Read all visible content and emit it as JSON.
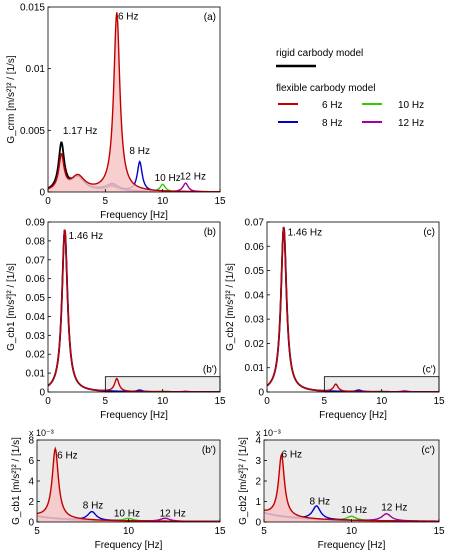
{
  "colors": {
    "rigid": "#000000",
    "f6": "#c00000",
    "f8": "#0000c8",
    "f10": "#33cc00",
    "f12": "#a000a0",
    "inset_bg": "#ececec",
    "fill_6hz": "#f7c6c6"
  },
  "legend": {
    "rigid_label": "rigid carbody model",
    "flexible_title": "flexible carbody model",
    "items": [
      "6 Hz",
      "10 Hz",
      "8 Hz",
      "12 Hz"
    ]
  },
  "chart_data": [
    {
      "id": "a",
      "type": "line",
      "panel_label": "(a)",
      "xlabel": "Frequency [Hz]",
      "ylabel": "G_crm [m/s²]² / [1/s]",
      "xlim": [
        0,
        15
      ],
      "ylim": [
        0,
        0.015
      ],
      "xticks": [
        "0",
        "5",
        "10",
        "15"
      ],
      "yticks": [
        "0",
        "0.005",
        "0.01",
        "0.015"
      ],
      "annotations": [
        "1.17 Hz",
        "6 Hz",
        "8 Hz",
        "10 Hz",
        "12 Hz"
      ],
      "series": [
        {
          "name": "rigid carbody model",
          "peaks": [
            [
              1.17,
              0.0038,
              0.32
            ],
            [
              2.6,
              0.0011,
              0.8
            ],
            [
              5.5,
              0.00045,
              1.0
            ]
          ]
        },
        {
          "name": "6 Hz",
          "peaks": [
            [
              1.17,
              0.0028,
              0.3
            ],
            [
              2.6,
              0.0012,
              0.8
            ],
            [
              6.0,
              0.0145,
              0.35
            ]
          ]
        },
        {
          "name": "8 Hz",
          "peaks": [
            [
              1.17,
              0.0028,
              0.3
            ],
            [
              2.6,
              0.0012,
              0.8
            ],
            [
              5.6,
              0.0006,
              0.7
            ],
            [
              8.0,
              0.0024,
              0.28
            ]
          ]
        },
        {
          "name": "10 Hz",
          "peaks": [
            [
              1.17,
              0.0028,
              0.3
            ],
            [
              2.6,
              0.0012,
              0.8
            ],
            [
              5.6,
              0.00035,
              0.8
            ],
            [
              10.0,
              0.0006,
              0.3
            ]
          ]
        },
        {
          "name": "12 Hz",
          "peaks": [
            [
              1.17,
              0.0028,
              0.3
            ],
            [
              2.6,
              0.0012,
              0.8
            ],
            [
              5.6,
              0.0005,
              0.8
            ],
            [
              12.0,
              0.0007,
              0.3
            ]
          ]
        }
      ]
    },
    {
      "id": "b",
      "type": "line",
      "panel_label": "(b)",
      "box_label": "(b')",
      "xlabel": "Frequency [Hz]",
      "ylabel": "G_cb1 [m/s²]² / [1/s]",
      "xlim": [
        0,
        15
      ],
      "ylim": [
        0,
        0.09
      ],
      "xticks": [
        "0",
        "5",
        "10",
        "15"
      ],
      "yticks": [
        "0",
        "0.01",
        "0.02",
        "0.03",
        "0.04",
        "0.05",
        "0.06",
        "0.07",
        "0.08",
        "0.09"
      ],
      "annotations": [
        "1.46 Hz"
      ],
      "series": [
        {
          "name": "rigid carbody model",
          "peaks": [
            [
              1.46,
              0.086,
              0.32
            ]
          ]
        },
        {
          "name": "6 Hz",
          "peaks": [
            [
              1.46,
              0.086,
              0.32
            ],
            [
              6.0,
              0.0068,
              0.25
            ]
          ]
        },
        {
          "name": "8 Hz",
          "peaks": [
            [
              1.46,
              0.086,
              0.32
            ],
            [
              8.0,
              0.0009,
              0.3
            ]
          ]
        },
        {
          "name": "10 Hz",
          "peaks": [
            [
              1.46,
              0.086,
              0.32
            ],
            [
              10.0,
              0.0003,
              0.35
            ]
          ]
        },
        {
          "name": "12 Hz",
          "peaks": [
            [
              1.46,
              0.086,
              0.32
            ],
            [
              12.0,
              0.0003,
              0.35
            ]
          ]
        }
      ]
    },
    {
      "id": "c",
      "type": "line",
      "panel_label": "(c)",
      "box_label": "(c')",
      "xlabel": "Frequency [Hz]",
      "ylabel": "G_cb2 [m/s²]² / [1/s]",
      "xlim": [
        0,
        15
      ],
      "ylim": [
        0,
        0.07
      ],
      "xticks": [
        "0",
        "5",
        "10",
        "15"
      ],
      "yticks": [
        "0",
        "0.01",
        "0.02",
        "0.03",
        "0.04",
        "0.05",
        "0.06",
        "0.07"
      ],
      "annotations": [
        "1.46 Hz"
      ],
      "series": [
        {
          "name": "rigid carbody model",
          "peaks": [
            [
              1.46,
              0.068,
              0.32
            ]
          ]
        },
        {
          "name": "6 Hz",
          "peaks": [
            [
              1.46,
              0.068,
              0.32
            ],
            [
              6.0,
              0.003,
              0.25
            ]
          ]
        },
        {
          "name": "8 Hz",
          "peaks": [
            [
              1.46,
              0.068,
              0.32
            ],
            [
              8.0,
              0.0007,
              0.3
            ]
          ]
        },
        {
          "name": "10 Hz",
          "peaks": [
            [
              1.46,
              0.068,
              0.32
            ],
            [
              10.0,
              0.0002,
              0.35
            ]
          ]
        },
        {
          "name": "12 Hz",
          "peaks": [
            [
              1.46,
              0.068,
              0.32
            ],
            [
              12.0,
              0.0004,
              0.35
            ]
          ]
        }
      ]
    },
    {
      "id": "bp",
      "type": "line",
      "panel_label": "(b')",
      "xlabel": "Frequency [Hz]",
      "ylabel": "G_cb1 [m/s²]² / [1/s]",
      "exponent": "x 10⁻³",
      "xlim": [
        5,
        15
      ],
      "ylim": [
        0,
        8
      ],
      "xticks": [
        "5",
        "10",
        "15"
      ],
      "yticks": [
        "0",
        "2",
        "4",
        "6",
        "8"
      ],
      "annotations": [
        "6 Hz",
        "8 Hz",
        "10 Hz",
        "12 Hz"
      ],
      "series": [
        {
          "name": "rigid carbody model",
          "peaks": [
            [
              1.46,
              86,
              0.32
            ]
          ]
        },
        {
          "name": "6 Hz",
          "peaks": [
            [
              1.46,
              86,
              0.32
            ],
            [
              6.0,
              6.8,
              0.22
            ]
          ]
        },
        {
          "name": "8 Hz",
          "peaks": [
            [
              1.46,
              86,
              0.32
            ],
            [
              8.0,
              0.85,
              0.3
            ]
          ]
        },
        {
          "name": "10 Hz",
          "peaks": [
            [
              1.46,
              86,
              0.32
            ],
            [
              10.0,
              0.25,
              0.35
            ]
          ]
        },
        {
          "name": "12 Hz",
          "peaks": [
            [
              1.46,
              86,
              0.32
            ],
            [
              12.0,
              0.3,
              0.35
            ]
          ]
        }
      ]
    },
    {
      "id": "cp",
      "type": "line",
      "panel_label": "(c')",
      "xlabel": "Frequency [Hz]",
      "ylabel": "G_cb2 [m/s²]² / [1/s]",
      "exponent": "x 10⁻³",
      "xlim": [
        5,
        15
      ],
      "ylim": [
        0,
        4
      ],
      "xticks": [
        "5",
        "10",
        "15"
      ],
      "yticks": [
        "0",
        "1",
        "2",
        "3",
        "4"
      ],
      "annotations": [
        "6 Hz",
        "8 Hz",
        "10 Hz",
        "12 Hz"
      ],
      "series": [
        {
          "name": "rigid carbody model",
          "peaks": [
            [
              1.46,
              68,
              0.32
            ]
          ]
        },
        {
          "name": "6 Hz",
          "peaks": [
            [
              1.46,
              68,
              0.32
            ],
            [
              6.0,
              3.0,
              0.22
            ]
          ]
        },
        {
          "name": "8 Hz",
          "peaks": [
            [
              1.46,
              68,
              0.32
            ],
            [
              8.0,
              0.65,
              0.3
            ]
          ]
        },
        {
          "name": "10 Hz",
          "peaks": [
            [
              1.46,
              68,
              0.32
            ],
            [
              10.0,
              0.2,
              0.35
            ]
          ]
        },
        {
          "name": "12 Hz",
          "peaks": [
            [
              1.46,
              68,
              0.32
            ],
            [
              12.0,
              0.35,
              0.35
            ]
          ]
        }
      ]
    }
  ]
}
